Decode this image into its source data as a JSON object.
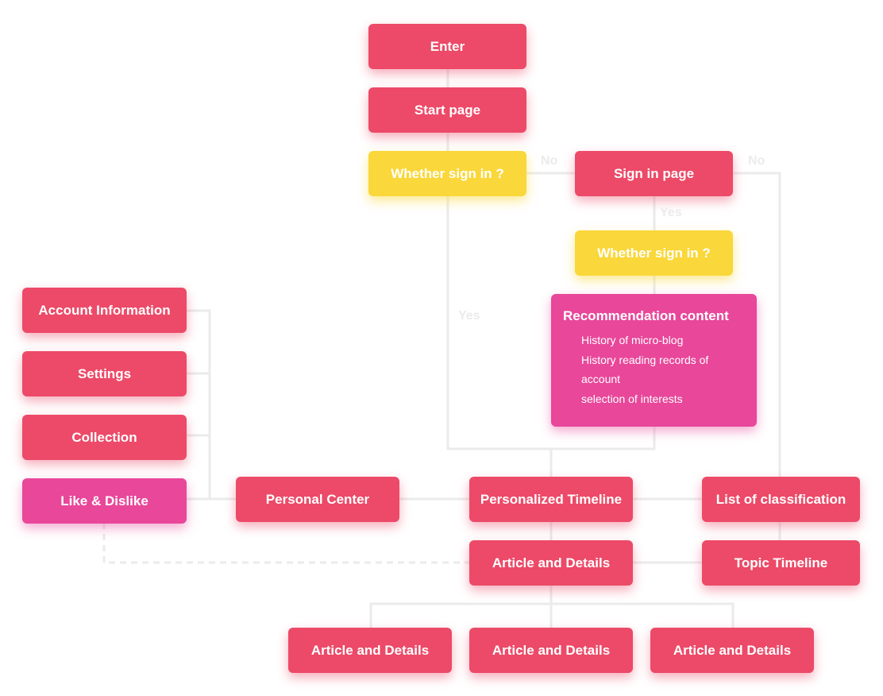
{
  "nodes": {
    "enter": "Enter",
    "start_page": "Start page",
    "whether_sign_in_1": "Whether sign in ?",
    "sign_in_page": "Sign in page",
    "whether_sign_in_2": "Whether sign in ?",
    "recommendation": {
      "title": "Recommendation content",
      "items": [
        "History of micro-blog",
        "History reading records of",
        "account",
        "selection of interests"
      ]
    },
    "account_information": "Account Information",
    "settings": "Settings",
    "collection": "Collection",
    "like_dislike": "Like & Dislike",
    "personal_center": "Personal Center",
    "personalized_timeline": "Personalized Timeline",
    "list_of_classification": "List of classification",
    "article_details_main": "Article and Details",
    "topic_timeline": "Topic Timeline",
    "article_details_left": "Article and Details",
    "article_details_mid": "Article and Details",
    "article_details_right": "Article and Details"
  },
  "edge_labels": {
    "no_1": "No",
    "no_2": "No",
    "yes_1": "Yes",
    "yes_2": "Yes"
  },
  "colors": {
    "red": "#ec4a68",
    "yellow": "#fad73a",
    "pink": "#e8479a",
    "connector": "#ebebeb"
  }
}
